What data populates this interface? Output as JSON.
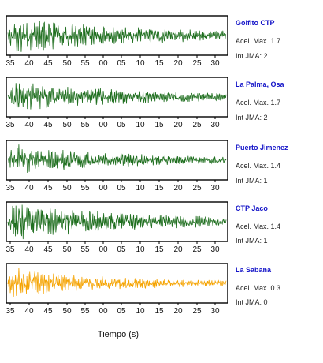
{
  "chart_data": {
    "type": "line",
    "xlabel": "Tiempo (s)",
    "x_ticks": [
      "35",
      "40",
      "45",
      "50",
      "55",
      "00",
      "05",
      "10",
      "15",
      "20",
      "25",
      "30"
    ],
    "grid": false,
    "colors": {
      "normal": "#1e6e1e",
      "highlight": "#f5a300",
      "frame": "#000000"
    },
    "panels": [
      {
        "name": "Golfito CTP",
        "acc": "Acel. Max. 1.7",
        "jma": "Int JMA: 2",
        "color": "#1e6e1e",
        "peak_amplitude": 0.9,
        "decay": 0.55,
        "x_end": 33
      },
      {
        "name": "La Palma, Osa",
        "acc": "Acel. Max. 1.7",
        "jma": "Int JMA: 2",
        "color": "#1e6e1e",
        "peak_amplitude": 0.85,
        "decay": 0.45,
        "x_end": 33
      },
      {
        "name": "Puerto Jimenez",
        "acc": "Acel. Max. 1.4",
        "jma": "Int JMA: 1",
        "color": "#1e6e1e",
        "peak_amplitude": 0.8,
        "decay": 0.45,
        "x_end": 33
      },
      {
        "name": "CTP Jaco",
        "acc": "Acel. Max. 1.4",
        "jma": "Int JMA: 1",
        "color": "#1e6e1e",
        "peak_amplitude": 0.95,
        "decay": 0.5,
        "x_end": 33
      },
      {
        "name": "La Sabana",
        "acc": "Acel. Max. 0.3",
        "jma": "Int JMA: 0",
        "color": "#f5a300",
        "peak_amplitude": 0.85,
        "decay": 0.35,
        "x_end": 33
      }
    ]
  }
}
